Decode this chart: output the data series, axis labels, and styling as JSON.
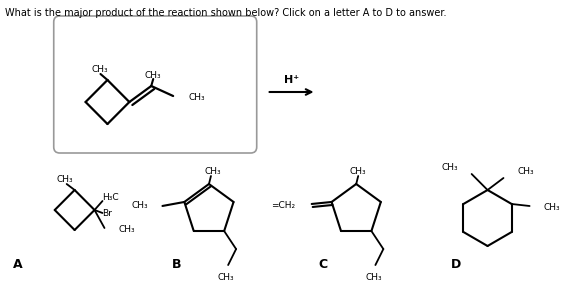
{
  "title": "What is the major product of the reaction shown below? Click on a letter A to D to answer.",
  "title_fontsize": 7.0,
  "background_color": "#ffffff",
  "text_color": "#000000",
  "line_color": "#000000",
  "line_width": 1.3,
  "label_fontsize": 6.5,
  "letter_fontsize": 9.0,
  "bold_fontsize": 8.0,
  "reagent": "H⁺",
  "letters": [
    "A",
    "B",
    "C",
    "D"
  ]
}
